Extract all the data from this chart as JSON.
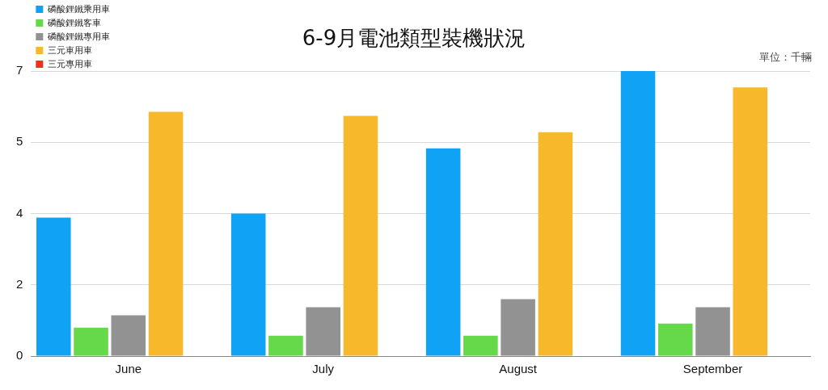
{
  "chart_data": {
    "type": "bar",
    "title": "6-9月電池類型裝機狀況",
    "annotations": [
      "單位：千輛"
    ],
    "categories": [
      "June",
      "July",
      "August",
      "September"
    ],
    "series": [
      {
        "name": "磷酸鋰鐵乘用車",
        "color": "#10a2f5",
        "values": [
          3.4,
          3.5,
          5.1,
          7.0
        ]
      },
      {
        "name": "磷酸鋰鐵客車",
        "color": "#66d94a",
        "values": [
          0.7,
          0.5,
          0.5,
          0.8
        ]
      },
      {
        "name": "磷酸鋰鐵專用車",
        "color": "#929292",
        "values": [
          1.0,
          1.2,
          1.4,
          1.2
        ]
      },
      {
        "name": "三元車用車",
        "color": "#f7b92b",
        "values": [
          6.0,
          5.9,
          5.5,
          6.6
        ]
      },
      {
        "name": "三元專用車",
        "color": "#f22f1d",
        "values": [
          0,
          0,
          0,
          0
        ]
      }
    ],
    "ylim": [
      0,
      7
    ],
    "yticks": [
      0,
      {
        "value": 1.75,
        "label": "2"
      },
      {
        "value": 3.5,
        "label": "4"
      },
      {
        "value": 5.25,
        "label": "5"
      },
      7
    ],
    "grid": "y",
    "legend": "top left"
  }
}
